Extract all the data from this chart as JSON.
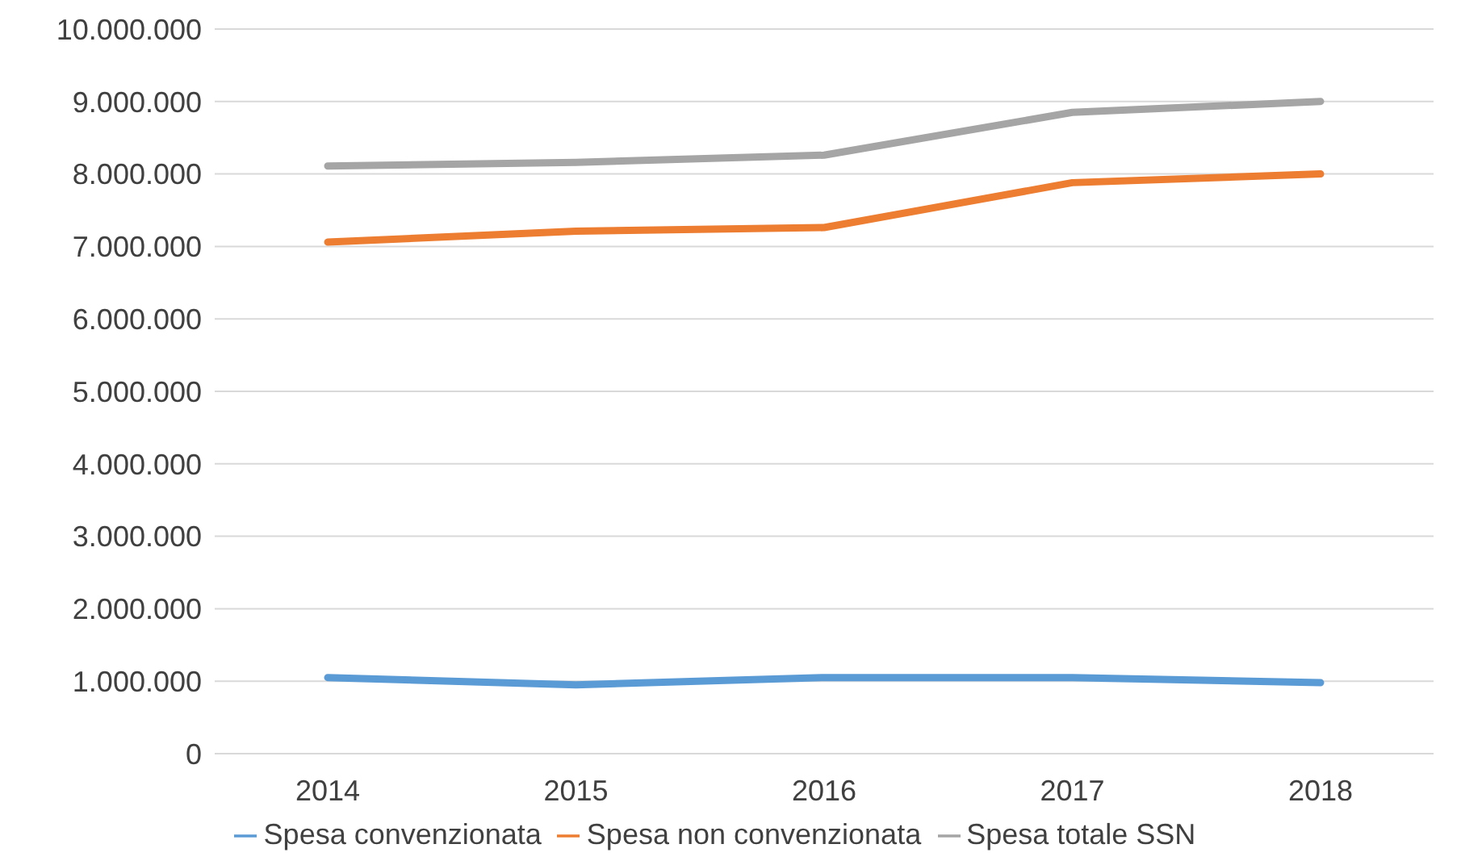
{
  "chart_data": {
    "type": "line",
    "categories": [
      "2014",
      "2015",
      "2016",
      "2017",
      "2018"
    ],
    "series": [
      {
        "name": "Spesa convenzionata",
        "color": "#5b9bd5",
        "values": [
          1050000,
          950000,
          1050000,
          1050000,
          980000
        ]
      },
      {
        "name": "Spesa non convenzionata",
        "color": "#ed7d31",
        "values": [
          7060000,
          7210000,
          7260000,
          7880000,
          8000000
        ]
      },
      {
        "name": "Spesa totale SSN",
        "color": "#a5a5a5",
        "values": [
          8110000,
          8160000,
          8260000,
          8850000,
          9000000
        ]
      }
    ],
    "ylim": [
      0,
      10000000
    ],
    "yticks": [
      {
        "value": 0,
        "label": "0"
      },
      {
        "value": 1000000,
        "label": "1.000.000"
      },
      {
        "value": 2000000,
        "label": "2.000.000"
      },
      {
        "value": 3000000,
        "label": "3.000.000"
      },
      {
        "value": 4000000,
        "label": "4.000.000"
      },
      {
        "value": 5000000,
        "label": "5.000.000"
      },
      {
        "value": 6000000,
        "label": "6.000.000"
      },
      {
        "value": 7000000,
        "label": "7.000.000"
      },
      {
        "value": 8000000,
        "label": "8.000.000"
      },
      {
        "value": 9000000,
        "label": "9.000.000"
      },
      {
        "value": 10000000,
        "label": "10.000.000"
      }
    ],
    "grid": "y",
    "legend": "bottom",
    "marker": "none",
    "line_style": "solid"
  }
}
